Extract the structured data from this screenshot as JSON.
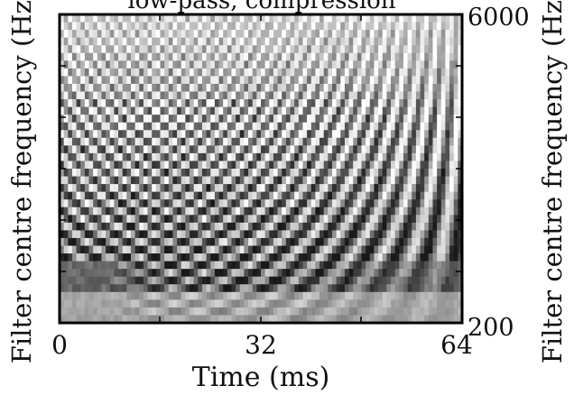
{
  "chart_data": {
    "type": "heatmap",
    "title": "low-pass, compression",
    "xlabel": "Time (ms)",
    "ylabel_left": "Filter centre frequency (Hz)",
    "ylabel_right": "Filter centre frequency (Hz)",
    "x_ticks": [
      "0",
      "32",
      "64"
    ],
    "x_range": [
      0,
      64
    ],
    "y_right_ticks": [
      "200",
      "6000"
    ],
    "y_range": [
      200,
      6000
    ],
    "colormap": "grayscale",
    "frame_color": "#000000"
  }
}
